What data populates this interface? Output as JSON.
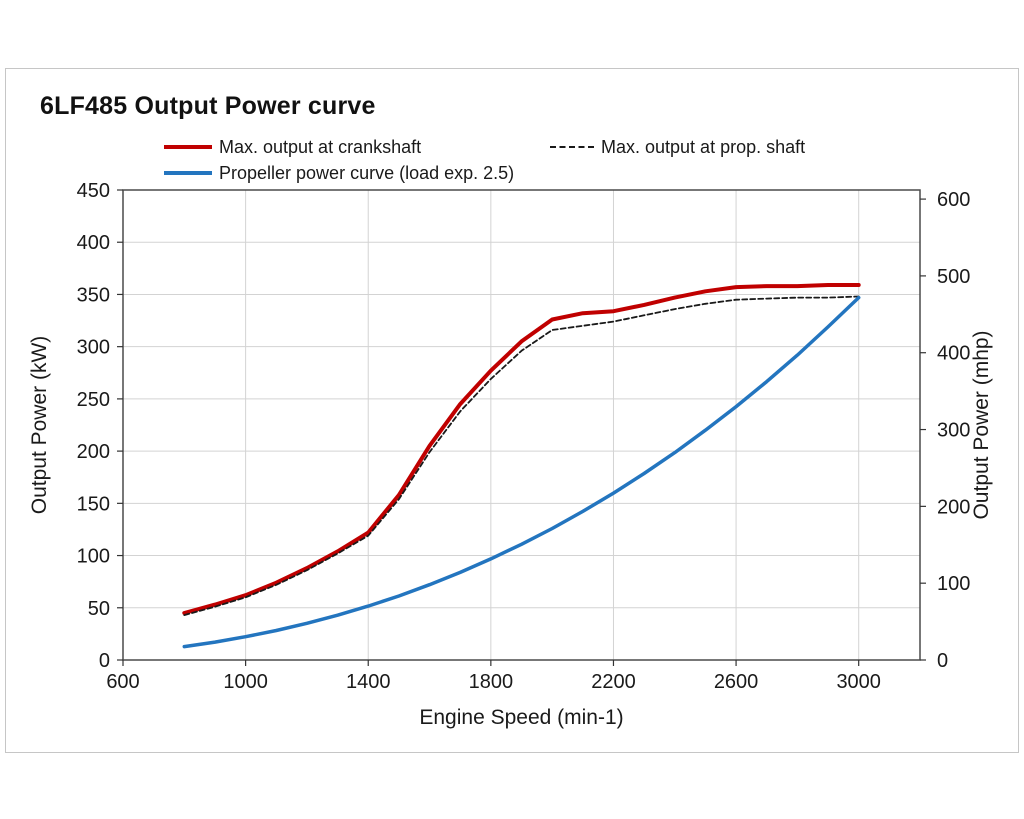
{
  "title": "6LF485 Output Power curve",
  "legend": {
    "items": [
      {
        "label": "Max. output at crankshaft",
        "color": "#c00000",
        "style": "solid"
      },
      {
        "label": "Max. output at prop. shaft",
        "color": "#1a1a1a",
        "style": "dashed"
      },
      {
        "label": "Propeller power curve (load exp. 2.5)",
        "color": "#2375bf",
        "style": "solid"
      }
    ]
  },
  "colors": {
    "red": "#c00000",
    "blue": "#2375bf",
    "black": "#1a1a1a",
    "grid": "#d3d3d3",
    "axis": "#4a4a4a",
    "tick": "#333333"
  },
  "chart_data": {
    "type": "line",
    "title": "6LF485 Output Power curve",
    "xlabel": "Engine Speed (min-1)",
    "ylabel_left": "Output Power (kW)",
    "ylabel_right": "Output Power (mhp)",
    "xlim": [
      600,
      3200
    ],
    "ylim_left_kw": [
      0,
      450
    ],
    "ylim_right_mhp": [
      0,
      612
    ],
    "x_ticks": [
      600,
      1000,
      1400,
      1800,
      2200,
      2600,
      3000
    ],
    "y_ticks_left_kw": [
      0,
      50,
      100,
      150,
      200,
      250,
      300,
      350,
      400,
      450
    ],
    "y_ticks_right_mhp": [
      0,
      100,
      200,
      300,
      400,
      500,
      600
    ],
    "kw_to_mhp": 1.35962,
    "grid": true,
    "legend_position": "top",
    "series": [
      {
        "name": "Max. output at crankshaft",
        "color": "#c00000",
        "dash": null,
        "width": 4,
        "points": [
          [
            800,
            45
          ],
          [
            900,
            53
          ],
          [
            1000,
            62
          ],
          [
            1100,
            74
          ],
          [
            1200,
            88
          ],
          [
            1300,
            104
          ],
          [
            1400,
            122
          ],
          [
            1500,
            158
          ],
          [
            1600,
            205
          ],
          [
            1700,
            245
          ],
          [
            1800,
            277
          ],
          [
            1900,
            305
          ],
          [
            2000,
            326
          ],
          [
            2100,
            332
          ],
          [
            2200,
            334
          ],
          [
            2300,
            340
          ],
          [
            2400,
            347
          ],
          [
            2500,
            353
          ],
          [
            2600,
            357
          ],
          [
            2700,
            358
          ],
          [
            2800,
            358
          ],
          [
            2900,
            359
          ],
          [
            3000,
            359
          ]
        ]
      },
      {
        "name": "Max. output at prop. shaft",
        "color": "#1a1a1a",
        "dash": "5,3",
        "width": 1.8,
        "points": [
          [
            800,
            43
          ],
          [
            900,
            51
          ],
          [
            1000,
            60
          ],
          [
            1100,
            72
          ],
          [
            1200,
            86
          ],
          [
            1300,
            102
          ],
          [
            1400,
            119
          ],
          [
            1500,
            154
          ],
          [
            1600,
            199
          ],
          [
            1700,
            238
          ],
          [
            1800,
            269
          ],
          [
            1900,
            296
          ],
          [
            2000,
            316
          ],
          [
            2100,
            320
          ],
          [
            2200,
            324
          ],
          [
            2300,
            330
          ],
          [
            2400,
            336
          ],
          [
            2500,
            341
          ],
          [
            2600,
            345
          ],
          [
            2700,
            346
          ],
          [
            2800,
            347
          ],
          [
            2900,
            347
          ],
          [
            3000,
            348
          ]
        ]
      },
      {
        "name": "Propeller power curve (load exp. 2.5)",
        "color": "#2375bf",
        "dash": null,
        "width": 3.5,
        "points": [
          [
            800,
            12.8
          ],
          [
            900,
            17.1
          ],
          [
            1000,
            22.3
          ],
          [
            1100,
            28.2
          ],
          [
            1200,
            35.1
          ],
          [
            1300,
            42.9
          ],
          [
            1400,
            51.6
          ],
          [
            1500,
            61.3
          ],
          [
            1600,
            72.1
          ],
          [
            1700,
            83.9
          ],
          [
            1800,
            96.8
          ],
          [
            1900,
            110.8
          ],
          [
            2000,
            125.9
          ],
          [
            2100,
            142.3
          ],
          [
            2200,
            159.8
          ],
          [
            2300,
            178.6
          ],
          [
            2400,
            198.6
          ],
          [
            2500,
            220.0
          ],
          [
            2600,
            242.6
          ],
          [
            2700,
            266.6
          ],
          [
            2800,
            291.9
          ],
          [
            2900,
            318.9
          ],
          [
            3000,
            347
          ]
        ]
      }
    ]
  }
}
